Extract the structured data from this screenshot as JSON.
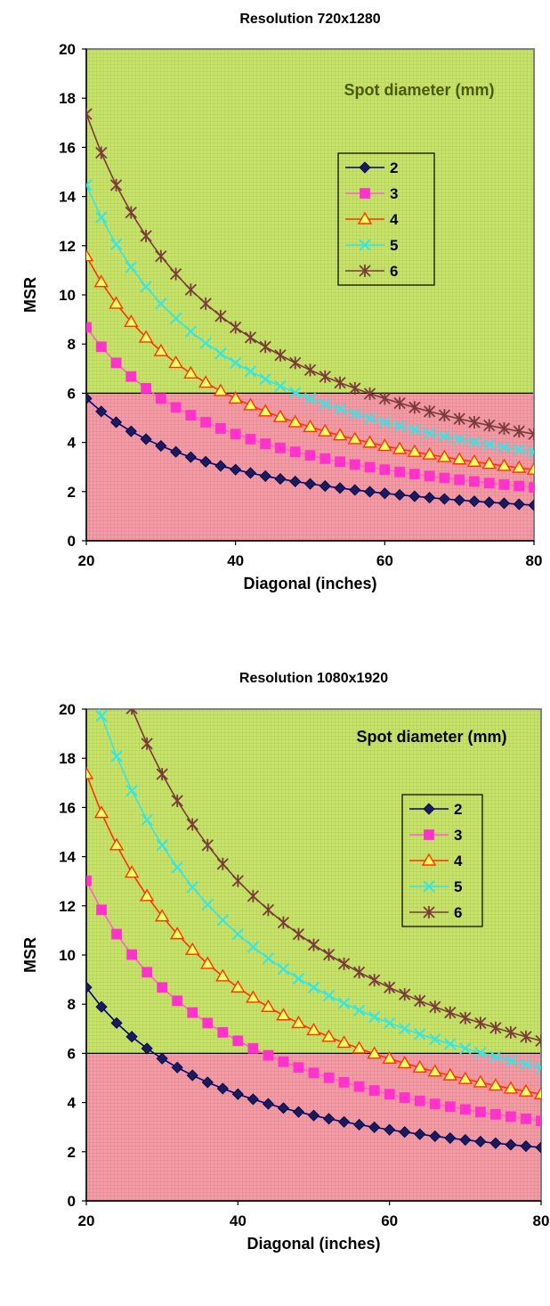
{
  "chart_data": [
    {
      "type": "line",
      "title": "Resolution 720x1280",
      "xlabel": "Diagonal (inches)",
      "ylabel": "MSR",
      "xlim": [
        20,
        80
      ],
      "ylim": [
        0,
        20
      ],
      "xticks": [
        20,
        40,
        60,
        80
      ],
      "yticks": [
        0,
        2,
        4,
        6,
        8,
        10,
        12,
        14,
        16,
        18,
        20
      ],
      "threshold": 6,
      "legend_title": "Spot diameter (mm)",
      "legend_title_color": "#4b5a00",
      "legend_position": "center-right",
      "region_colors": {
        "above": "#c8e36b",
        "below": "#f29ca6"
      },
      "x": [
        20,
        22,
        24,
        26,
        28,
        30,
        32,
        34,
        36,
        38,
        40,
        42,
        44,
        46,
        48,
        50,
        52,
        54,
        56,
        58,
        60,
        62,
        64,
        66,
        68,
        70,
        72,
        74,
        76,
        78,
        80
      ],
      "series": [
        {
          "name": "2",
          "coef": 115.7,
          "marker": "diamond",
          "line": "#000080",
          "fill": "#1a1a5e"
        },
        {
          "name": "3",
          "coef": 173.6,
          "marker": "square",
          "line": "#ff5fcf",
          "fill": "#ff33cc"
        },
        {
          "name": "4",
          "coef": 231.4,
          "marker": "triangle",
          "line": "#ff3300",
          "fill": "#ffff66"
        },
        {
          "name": "5",
          "coef": 289.3,
          "marker": "x",
          "line": "#33e6e6",
          "fill": "#33e6e6"
        },
        {
          "name": "6",
          "coef": 347.1,
          "marker": "star",
          "line": "#7a3b3b",
          "fill": "#7a3b3b"
        }
      ]
    },
    {
      "type": "line",
      "title": "Resolution 1080x1920",
      "xlabel": "Diagonal (inches)",
      "ylabel": "MSR",
      "xlim": [
        20,
        80
      ],
      "ylim": [
        0,
        20
      ],
      "xticks": [
        20,
        40,
        60,
        80
      ],
      "yticks": [
        0,
        2,
        4,
        6,
        8,
        10,
        12,
        14,
        16,
        18,
        20
      ],
      "threshold": 6,
      "legend_title": "Spot diameter (mm)",
      "legend_title_color": "#000000",
      "legend_position": "center-right",
      "region_colors": {
        "above": "#c8e36b",
        "below": "#f29ca6"
      },
      "x": [
        20,
        22,
        24,
        26,
        28,
        30,
        32,
        34,
        36,
        38,
        40,
        42,
        44,
        46,
        48,
        50,
        52,
        54,
        56,
        58,
        60,
        62,
        64,
        66,
        68,
        70,
        72,
        74,
        76,
        78,
        80
      ],
      "series": [
        {
          "name": "2",
          "coef": 173.6,
          "marker": "diamond",
          "line": "#000080",
          "fill": "#1a1a5e"
        },
        {
          "name": "3",
          "coef": 260.4,
          "marker": "square",
          "line": "#ff5fcf",
          "fill": "#ff33cc"
        },
        {
          "name": "4",
          "coef": 347.1,
          "marker": "triangle",
          "line": "#ff3300",
          "fill": "#ffff66"
        },
        {
          "name": "5",
          "coef": 433.9,
          "marker": "x",
          "line": "#33e6e6",
          "fill": "#33e6e6"
        },
        {
          "name": "6",
          "coef": 520.7,
          "marker": "star",
          "line": "#7a3b3b",
          "fill": "#7a3b3b"
        }
      ]
    }
  ]
}
